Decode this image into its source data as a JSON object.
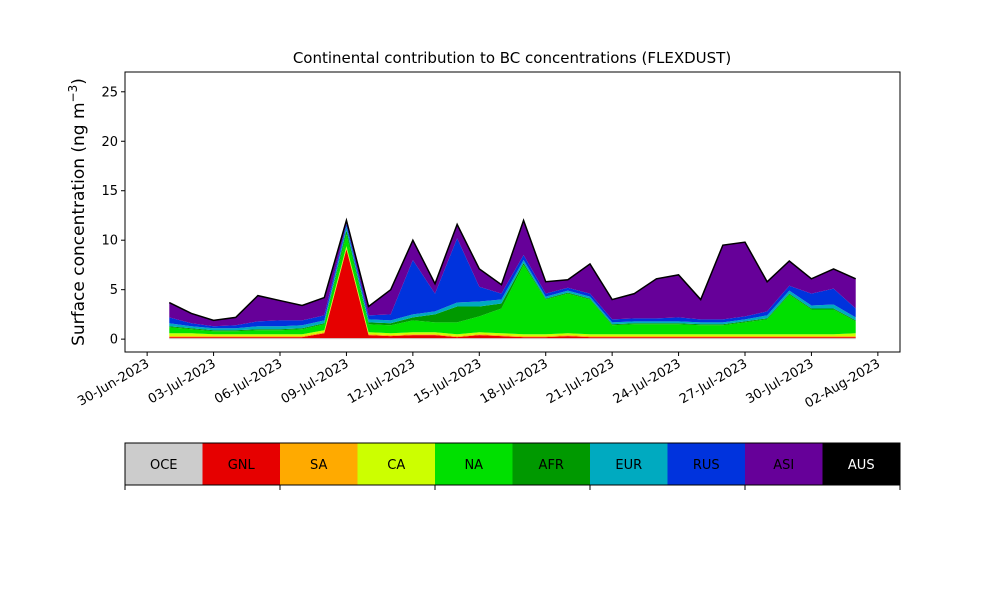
{
  "chart_data": {
    "type": "area",
    "stacked": true,
    "title": "Continental contribution to BC concentrations (FLEXDUST)",
    "xlabel": "",
    "ylabel": "Surface concentration (ng m",
    "ylabel_exponent": "−3",
    "ylabel_suffix": ")",
    "xlim": [
      "2023-06-29",
      "2023-08-03"
    ],
    "ylim": [
      -1.3,
      27
    ],
    "y_ticks": [
      0,
      5,
      10,
      15,
      20,
      25
    ],
    "y_tick_labels": [
      "0",
      "5",
      "10",
      "15",
      "20",
      "25"
    ],
    "x_ticks": [
      "2023-06-30",
      "2023-07-03",
      "2023-07-06",
      "2023-07-09",
      "2023-07-12",
      "2023-07-15",
      "2023-07-18",
      "2023-07-21",
      "2023-07-24",
      "2023-07-27",
      "2023-07-30",
      "2023-08-02"
    ],
    "x_tick_labels": [
      "30-Jun-2023",
      "03-Jul-2023",
      "06-Jul-2023",
      "09-Jul-2023",
      "12-Jul-2023",
      "15-Jul-2023",
      "18-Jul-2023",
      "21-Jul-2023",
      "24-Jul-2023",
      "27-Jul-2023",
      "30-Jul-2023",
      "02-Aug-2023"
    ],
    "grid": false,
    "total_line_color": "#000000",
    "x": [
      "2023-07-01",
      "2023-07-02",
      "2023-07-03",
      "2023-07-04",
      "2023-07-05",
      "2023-07-06",
      "2023-07-07",
      "2023-07-08",
      "2023-07-09",
      "2023-07-10",
      "2023-07-11",
      "2023-07-12",
      "2023-07-13",
      "2023-07-14",
      "2023-07-15",
      "2023-07-16",
      "2023-07-17",
      "2023-07-18",
      "2023-07-19",
      "2023-07-20",
      "2023-07-21",
      "2023-07-22",
      "2023-07-23",
      "2023-07-24",
      "2023-07-25",
      "2023-07-26",
      "2023-07-27",
      "2023-07-28",
      "2023-07-29",
      "2023-07-30",
      "2023-07-31",
      "2023-08-01"
    ],
    "series": [
      {
        "name": "OCE",
        "color": "#cccccc",
        "values": [
          0.1,
          0.1,
          0.1,
          0.1,
          0.1,
          0.1,
          0.1,
          0.1,
          0.1,
          0.1,
          0.1,
          0.1,
          0.1,
          0.1,
          0.1,
          0.1,
          0.1,
          0.1,
          0.1,
          0.1,
          0.1,
          0.1,
          0.1,
          0.1,
          0.1,
          0.1,
          0.1,
          0.1,
          0.1,
          0.1,
          0.1,
          0.1
        ]
      },
      {
        "name": "GNL",
        "color": "#e60000",
        "values": [
          0.1,
          0.1,
          0.1,
          0.1,
          0.1,
          0.1,
          0.1,
          0.5,
          9.0,
          0.3,
          0.2,
          0.3,
          0.3,
          0.1,
          0.3,
          0.2,
          0.1,
          0.1,
          0.2,
          0.1,
          0.1,
          0.1,
          0.1,
          0.1,
          0.1,
          0.1,
          0.1,
          0.1,
          0.1,
          0.1,
          0.1,
          0.1
        ]
      },
      {
        "name": "SA",
        "color": "#ffaa00",
        "values": [
          0.1,
          0.1,
          0.1,
          0.1,
          0.1,
          0.1,
          0.1,
          0.1,
          0.1,
          0.1,
          0.1,
          0.1,
          0.1,
          0.1,
          0.1,
          0.1,
          0.1,
          0.1,
          0.1,
          0.1,
          0.1,
          0.1,
          0.1,
          0.1,
          0.1,
          0.1,
          0.1,
          0.1,
          0.1,
          0.1,
          0.1,
          0.1
        ]
      },
      {
        "name": "CA",
        "color": "#ccff00",
        "values": [
          0.3,
          0.3,
          0.2,
          0.2,
          0.2,
          0.2,
          0.2,
          0.2,
          0.2,
          0.2,
          0.2,
          0.2,
          0.2,
          0.2,
          0.2,
          0.2,
          0.2,
          0.2,
          0.2,
          0.2,
          0.2,
          0.2,
          0.2,
          0.2,
          0.2,
          0.2,
          0.2,
          0.2,
          0.2,
          0.2,
          0.2,
          0.3
        ]
      },
      {
        "name": "NA",
        "color": "#00e000",
        "values": [
          0.6,
          0.4,
          0.3,
          0.3,
          0.4,
          0.4,
          0.5,
          0.6,
          1.2,
          0.8,
          0.8,
          1.2,
          1.0,
          1.2,
          1.6,
          2.5,
          7.0,
          3.5,
          4.0,
          3.5,
          0.9,
          1.0,
          1.0,
          1.0,
          0.9,
          0.9,
          1.2,
          1.5,
          4.0,
          2.5,
          2.5,
          1.2
        ]
      },
      {
        "name": "AFR",
        "color": "#009900",
        "values": [
          0.1,
          0.1,
          0.1,
          0.1,
          0.1,
          0.1,
          0.1,
          0.1,
          0.4,
          0.2,
          0.2,
          0.3,
          0.8,
          1.6,
          1.0,
          0.5,
          0.2,
          0.1,
          0.1,
          0.1,
          0.1,
          0.1,
          0.1,
          0.1,
          0.1,
          0.1,
          0.1,
          0.1,
          0.1,
          0.1,
          0.1,
          0.1
        ]
      },
      {
        "name": "EUR",
        "color": "#00aac0",
        "values": [
          0.3,
          0.2,
          0.2,
          0.2,
          0.3,
          0.3,
          0.3,
          0.3,
          0.4,
          0.3,
          0.3,
          0.3,
          0.3,
          0.4,
          0.5,
          0.4,
          0.3,
          0.2,
          0.2,
          0.2,
          0.2,
          0.2,
          0.2,
          0.2,
          0.2,
          0.2,
          0.2,
          0.3,
          0.3,
          0.3,
          0.4,
          0.3
        ]
      },
      {
        "name": "RUS",
        "color": "#0033dd",
        "values": [
          0.6,
          0.3,
          0.2,
          0.3,
          0.5,
          0.6,
          0.5,
          0.5,
          0.3,
          0.4,
          0.6,
          5.5,
          1.8,
          6.5,
          1.5,
          0.6,
          0.5,
          0.3,
          0.3,
          0.3,
          0.3,
          0.3,
          0.3,
          0.4,
          0.3,
          0.3,
          0.3,
          0.4,
          0.5,
          1.2,
          1.6,
          0.9
        ]
      },
      {
        "name": "ASI",
        "color": "#660099",
        "values": [
          1.5,
          1.0,
          0.6,
          0.8,
          2.6,
          2.0,
          1.5,
          1.8,
          0.3,
          0.9,
          2.5,
          2.0,
          1.0,
          1.4,
          1.8,
          0.9,
          3.5,
          1.2,
          0.8,
          3.0,
          2.0,
          2.5,
          4.0,
          4.3,
          2.0,
          7.5,
          7.5,
          3.0,
          2.5,
          1.5,
          2.0,
          3.0
        ]
      },
      {
        "name": "AUS",
        "color": "#000000",
        "values": [
          0.0,
          0.0,
          0.0,
          0.0,
          0.0,
          0.0,
          0.0,
          0.0,
          0.0,
          0.0,
          0.0,
          0.0,
          0.0,
          0.0,
          0.0,
          0.0,
          0.0,
          0.0,
          0.0,
          0.0,
          0.0,
          0.0,
          0.0,
          0.0,
          0.0,
          0.0,
          0.0,
          0.0,
          0.0,
          0.0,
          0.0,
          0.0
        ]
      }
    ]
  }
}
